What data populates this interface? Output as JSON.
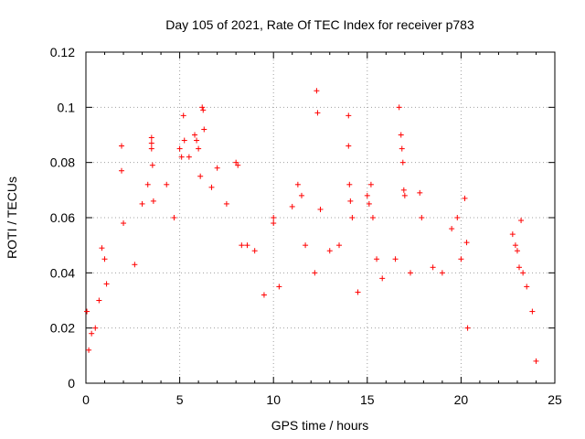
{
  "chart_data": {
    "type": "scatter",
    "title": "Day 105 of 2021, Rate Of TEC Index for receiver p783",
    "xlabel": "GPS time / hours",
    "ylabel": "ROTI / TECUs",
    "xlim": [
      0,
      25
    ],
    "ylim": [
      0,
      0.12
    ],
    "x_ticks": [
      0,
      5,
      10,
      15,
      20,
      25
    ],
    "x_tick_labels": [
      "0",
      "5",
      "10",
      "15",
      "20",
      "25"
    ],
    "y_ticks": [
      0,
      0.02,
      0.04,
      0.06,
      0.08,
      0.1,
      0.12
    ],
    "y_tick_labels": [
      "0",
      "0.02",
      "0.04",
      "0.06",
      "0.08",
      "0.1",
      "0.12"
    ],
    "grid": true,
    "marker": "+",
    "marker_color": "#ff0000",
    "data_gap_hours": [
      20.4,
      22.6
    ],
    "series": [
      {
        "values": [
          [
            0.05,
            0.026
          ],
          [
            0.15,
            0.012
          ],
          [
            0.3,
            0.018
          ],
          [
            0.5,
            0.02
          ],
          [
            0.7,
            0.03
          ],
          [
            0.85,
            0.049
          ],
          [
            1.0,
            0.045
          ],
          [
            1.1,
            0.036
          ],
          [
            1.9,
            0.086
          ],
          [
            1.9,
            0.077
          ],
          [
            2.0,
            0.058
          ],
          [
            2.6,
            0.043
          ],
          [
            3.0,
            0.065
          ],
          [
            3.3,
            0.072
          ],
          [
            3.5,
            0.089
          ],
          [
            3.5,
            0.087
          ],
          [
            3.5,
            0.085
          ],
          [
            3.55,
            0.079
          ],
          [
            3.6,
            0.066
          ],
          [
            4.3,
            0.072
          ],
          [
            4.7,
            0.06
          ],
          [
            5.0,
            0.085
          ],
          [
            5.1,
            0.082
          ],
          [
            5.2,
            0.097
          ],
          [
            5.25,
            0.088
          ],
          [
            5.5,
            0.082
          ],
          [
            5.8,
            0.09
          ],
          [
            5.9,
            0.088
          ],
          [
            6.0,
            0.085
          ],
          [
            6.1,
            0.075
          ],
          [
            6.2,
            0.1
          ],
          [
            6.25,
            0.099
          ],
          [
            6.3,
            0.092
          ],
          [
            6.7,
            0.071
          ],
          [
            7.0,
            0.078
          ],
          [
            7.5,
            0.065
          ],
          [
            8.0,
            0.08
          ],
          [
            8.1,
            0.079
          ],
          [
            8.3,
            0.05
          ],
          [
            8.6,
            0.05
          ],
          [
            9.0,
            0.048
          ],
          [
            9.5,
            0.032
          ],
          [
            10.0,
            0.06
          ],
          [
            10.0,
            0.058
          ],
          [
            10.3,
            0.035
          ],
          [
            11.0,
            0.064
          ],
          [
            11.3,
            0.072
          ],
          [
            11.5,
            0.068
          ],
          [
            11.7,
            0.05
          ],
          [
            12.2,
            0.04
          ],
          [
            12.3,
            0.106
          ],
          [
            12.35,
            0.098
          ],
          [
            12.5,
            0.063
          ],
          [
            13.0,
            0.048
          ],
          [
            13.5,
            0.05
          ],
          [
            14.0,
            0.097
          ],
          [
            14.0,
            0.086
          ],
          [
            14.05,
            0.072
          ],
          [
            14.1,
            0.066
          ],
          [
            14.2,
            0.06
          ],
          [
            14.5,
            0.033
          ],
          [
            15.0,
            0.068
          ],
          [
            15.1,
            0.065
          ],
          [
            15.2,
            0.072
          ],
          [
            15.3,
            0.06
          ],
          [
            15.5,
            0.045
          ],
          [
            15.8,
            0.038
          ],
          [
            16.5,
            0.045
          ],
          [
            16.7,
            0.1
          ],
          [
            16.8,
            0.09
          ],
          [
            16.85,
            0.085
          ],
          [
            16.9,
            0.08
          ],
          [
            16.95,
            0.07
          ],
          [
            17.0,
            0.068
          ],
          [
            17.3,
            0.04
          ],
          [
            17.8,
            0.069
          ],
          [
            17.9,
            0.06
          ],
          [
            18.5,
            0.042
          ],
          [
            19.0,
            0.04
          ],
          [
            19.5,
            0.056
          ],
          [
            19.8,
            0.06
          ],
          [
            20.0,
            0.045
          ],
          [
            20.2,
            0.067
          ],
          [
            20.3,
            0.051
          ],
          [
            20.35,
            0.02
          ],
          [
            22.75,
            0.054
          ],
          [
            22.9,
            0.05
          ],
          [
            23.0,
            0.048
          ],
          [
            23.1,
            0.042
          ],
          [
            23.2,
            0.059
          ],
          [
            23.3,
            0.04
          ],
          [
            23.5,
            0.035
          ],
          [
            23.8,
            0.026
          ],
          [
            24.0,
            0.008
          ]
        ]
      }
    ]
  }
}
